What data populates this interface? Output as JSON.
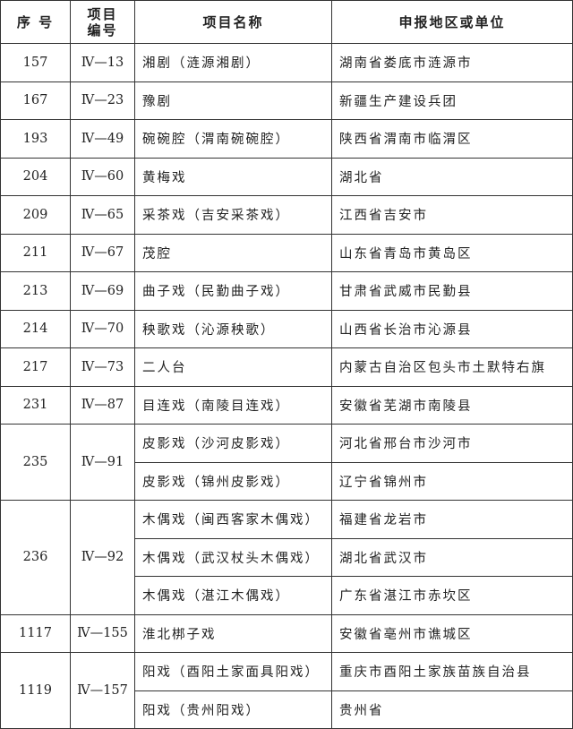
{
  "table": {
    "header": [
      "序 号",
      "项目编号",
      "项目名称",
      "申报地区或单位"
    ],
    "rows": [
      {
        "no": "157",
        "code": "Ⅳ—13",
        "items": [
          {
            "name": "湘剧（涟源湘剧）",
            "region": "湖南省娄底市涟源市"
          }
        ]
      },
      {
        "no": "167",
        "code": "Ⅳ—23",
        "items": [
          {
            "name": "豫剧",
            "region": "新疆生产建设兵团"
          }
        ]
      },
      {
        "no": "193",
        "code": "Ⅳ—49",
        "items": [
          {
            "name": "碗碗腔（渭南碗碗腔）",
            "region": "陕西省渭南市临渭区"
          }
        ]
      },
      {
        "no": "204",
        "code": "Ⅳ—60",
        "items": [
          {
            "name": "黄梅戏",
            "region": "湖北省"
          }
        ]
      },
      {
        "no": "209",
        "code": "Ⅳ—65",
        "items": [
          {
            "name": "采茶戏（吉安采茶戏）",
            "region": "江西省吉安市"
          }
        ]
      },
      {
        "no": "211",
        "code": "Ⅳ—67",
        "items": [
          {
            "name": "茂腔",
            "region": "山东省青岛市黄岛区"
          }
        ]
      },
      {
        "no": "213",
        "code": "Ⅳ—69",
        "items": [
          {
            "name": "曲子戏（民勤曲子戏）",
            "region": "甘肃省武威市民勤县"
          }
        ]
      },
      {
        "no": "214",
        "code": "Ⅳ—70",
        "items": [
          {
            "name": "秧歌戏（沁源秧歌）",
            "region": "山西省长治市沁源县"
          }
        ]
      },
      {
        "no": "217",
        "code": "Ⅳ—73",
        "items": [
          {
            "name": "二人台",
            "region": "内蒙古自治区包头市土默特右旗"
          }
        ]
      },
      {
        "no": "231",
        "code": "Ⅳ—87",
        "items": [
          {
            "name": "目连戏（南陵目连戏）",
            "region": "安徽省芜湖市南陵县"
          }
        ]
      },
      {
        "no": "235",
        "code": "Ⅳ—91",
        "items": [
          {
            "name": "皮影戏（沙河皮影戏）",
            "region": "河北省邢台市沙河市"
          },
          {
            "name": "皮影戏（锦州皮影戏）",
            "region": "辽宁省锦州市"
          }
        ]
      },
      {
        "no": "236",
        "code": "Ⅳ—92",
        "items": [
          {
            "name": "木偶戏（闽西客家木偶戏）",
            "region": "福建省龙岩市"
          },
          {
            "name": "木偶戏（武汉杖头木偶戏）",
            "region": "湖北省武汉市"
          },
          {
            "name": "木偶戏（湛江木偶戏）",
            "region": "广东省湛江市赤坎区"
          }
        ]
      },
      {
        "no": "1117",
        "code": "Ⅳ—155",
        "items": [
          {
            "name": "淮北梆子戏",
            "region": "安徽省亳州市谯城区"
          }
        ]
      },
      {
        "no": "1119",
        "code": "Ⅳ—157",
        "items": [
          {
            "name": "阳戏（酉阳土家面具阳戏）",
            "region": "重庆市酉阳土家族苗族自治县"
          },
          {
            "name": "阳戏（贵州阳戏）",
            "region": "贵州省"
          }
        ]
      }
    ]
  }
}
